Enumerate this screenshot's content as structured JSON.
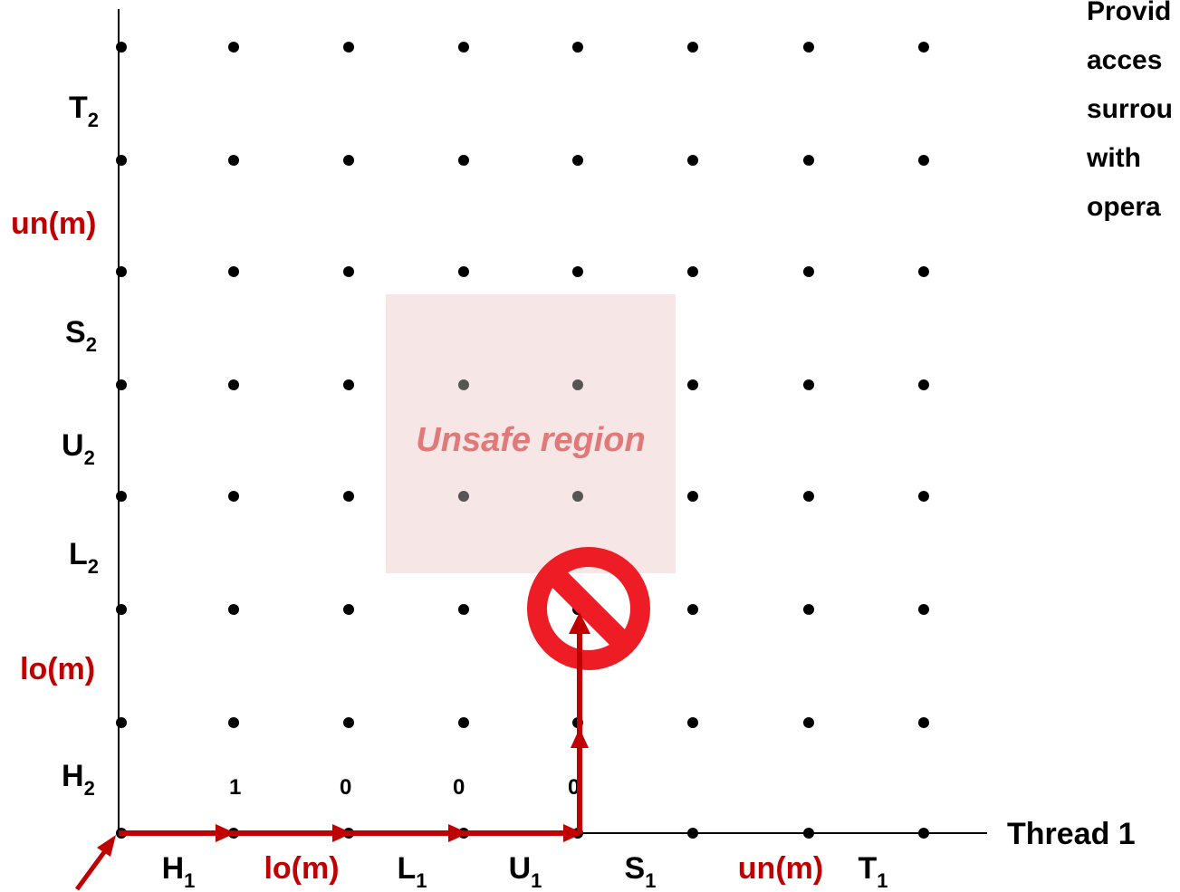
{
  "x_axis": {
    "title": "Thread 1",
    "labels": [
      {
        "base": "H",
        "sub": "1",
        "highlight": false
      },
      {
        "base": "lo(m)",
        "sub": "",
        "highlight": true
      },
      {
        "base": "L",
        "sub": "1",
        "highlight": false
      },
      {
        "base": "U",
        "sub": "1",
        "highlight": false
      },
      {
        "base": "S",
        "sub": "1",
        "highlight": false
      },
      {
        "base": "un(m)",
        "sub": "",
        "highlight": true
      },
      {
        "base": "T",
        "sub": "1",
        "highlight": false
      }
    ]
  },
  "y_axis": {
    "labels": [
      {
        "base": "H",
        "sub": "2",
        "highlight": false
      },
      {
        "base": "lo(m)",
        "sub": "",
        "highlight": true
      },
      {
        "base": "L",
        "sub": "2",
        "highlight": false
      },
      {
        "base": "U",
        "sub": "2",
        "highlight": false
      },
      {
        "base": "S",
        "sub": "2",
        "highlight": false
      },
      {
        "base": "un(m)",
        "sub": "",
        "highlight": true
      },
      {
        "base": "T",
        "sub": "2",
        "highlight": false
      }
    ]
  },
  "unsafe_region": {
    "label": "Unsafe region",
    "color": "#f7e6e6",
    "text_color": "#e07a7a"
  },
  "state_values": [
    "1",
    "0",
    "0",
    "0"
  ],
  "side_note": {
    "lines": [
      "Provid",
      "acces",
      "surrou",
      "with ",
      "opera"
    ]
  },
  "colors": {
    "highlight": "#c00000",
    "path": "#c00000",
    "forbidden": "#ee1c24",
    "text": "#000000"
  },
  "forbidden_icon": "no-entry-icon"
}
